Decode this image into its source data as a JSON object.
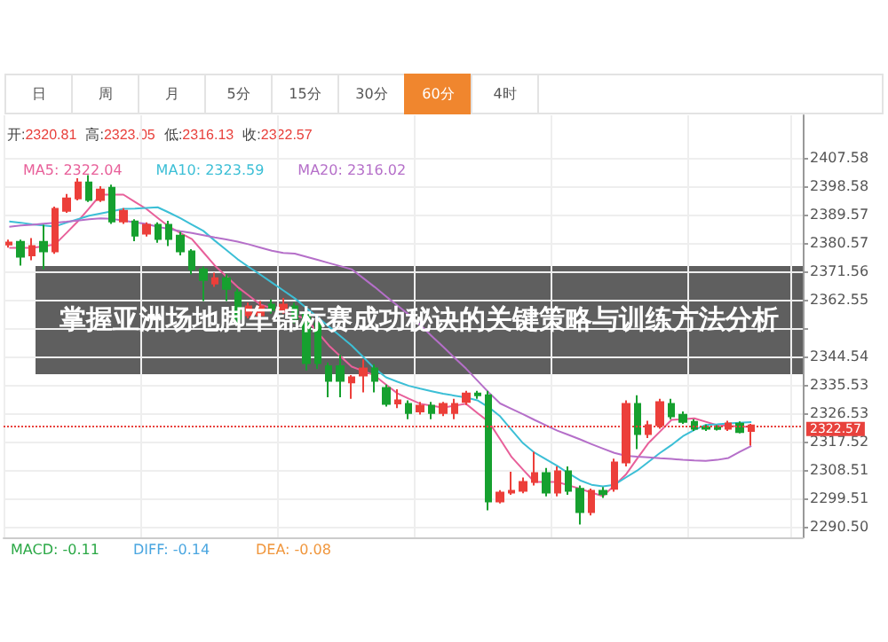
{
  "chart_data": {
    "type": "candlestick",
    "title": "掌握亚洲场地脚车锦标赛成功秘诀的关键策略与训练方法分析",
    "annotations": [
      "日",
      "周",
      "月",
      "5分",
      "15分",
      "30分",
      "60分",
      "4时",
      "开:2320.81",
      "高:2323.05",
      "低:2316.13",
      "收:2322.57",
      "MACD: -0.11",
      "DIFF: -0.14",
      "DEA: -0.08"
    ],
    "categories": [
      null,
      null,
      null,
      null,
      null,
      null,
      null,
      null,
      null,
      null,
      null,
      null,
      null,
      null,
      null,
      null,
      null,
      null,
      null,
      null,
      null,
      null,
      null,
      null,
      null,
      null,
      null,
      null,
      null,
      null,
      null,
      null,
      null,
      null,
      null,
      null,
      null,
      null,
      null,
      null,
      null,
      null,
      null,
      null,
      null,
      null,
      null,
      null,
      null,
      null,
      null,
      null,
      null,
      null,
      null,
      null,
      null,
      null,
      null,
      null,
      null,
      null,
      null,
      null,
      null,
      null,
      null,
      null,
      null,
      null
    ],
    "ohlc": [
      [
        2380.0,
        2381.5,
        2379.0,
        2380.6
      ],
      [
        2380.8,
        2381.5,
        2373.3,
        2376.1
      ],
      [
        2376.5,
        2382.0,
        2375.0,
        2379.5
      ],
      [
        2380.8,
        2386.2,
        2372.1,
        2377.8
      ],
      [
        2377.8,
        2392.0,
        2377.0,
        2391.3
      ],
      [
        2390.7,
        2396.0,
        2390.0,
        2394.6
      ],
      [
        2394.6,
        2401.0,
        2394.0,
        2399.7
      ],
      [
        2399.7,
        2402.0,
        2393.5,
        2394.1
      ],
      [
        2394.1,
        2398.5,
        2393.5,
        2397.4
      ],
      [
        2398.0,
        2399.0,
        2386.5,
        2387.3
      ],
      [
        2387.3,
        2391.5,
        2386.5,
        2390.7
      ],
      [
        2387.3,
        2388.0,
        2381.0,
        2382.8
      ],
      [
        2383.4,
        2387.0,
        2382.5,
        2386.2
      ],
      [
        2386.2,
        2387.0,
        2380.5,
        2381.7
      ],
      [
        2386.2,
        2387.5,
        2379.5,
        2381.7
      ],
      [
        2382.8,
        2384.0,
        2376.5,
        2377.8
      ],
      [
        2377.8,
        2378.5,
        2370.5,
        2372.1
      ],
      [
        2372.1,
        2373.0,
        2362.0,
        2368.7
      ],
      [
        2367.6,
        2371.0,
        2366.5,
        2369.3
      ],
      [
        2369.3,
        2370.5,
        2362.0,
        2365.9
      ],
      [
        2364.8,
        2366.0,
        2355.0,
        2356.4
      ],
      [
        2357.5,
        2361.5,
        2356.5,
        2360.3
      ],
      [
        2357.5,
        2362.0,
        2356.0,
        2360.3
      ],
      [
        2360.9,
        2362.5,
        2358.0,
        2359.2
      ],
      [
        2359.2,
        2363.0,
        2358.0,
        2360.9
      ],
      [
        2360.3,
        2361.5,
        2355.0,
        2356.4
      ],
      [
        2358.2,
        2359.0,
        2340.0,
        2342.3
      ],
      [
        2355.0,
        2356.0,
        2340.5,
        2342.3
      ],
      [
        2341.3,
        2342.5,
        2331.5,
        2336.7
      ],
      [
        2341.3,
        2345.0,
        2331.5,
        2336.7
      ],
      [
        2336.2,
        2338.5,
        2331.0,
        2337.8
      ],
      [
        2338.4,
        2343.5,
        2333.0,
        2340.6
      ],
      [
        2340.6,
        2342.0,
        2333.0,
        2336.7
      ],
      [
        2334.4,
        2335.5,
        2328.5,
        2329.4
      ],
      [
        2329.5,
        2334.0,
        2328.0,
        2330.5
      ],
      [
        2329.4,
        2330.5,
        2324.5,
        2326.5
      ],
      [
        2327.0,
        2330.0,
        2326.0,
        2328.8
      ],
      [
        2328.8,
        2330.0,
        2324.5,
        2326.5
      ],
      [
        2326.5,
        2330.0,
        2325.5,
        2329.4
      ],
      [
        2326.5,
        2331.0,
        2324.5,
        2329.4
      ],
      [
        2330.0,
        2333.5,
        2329.0,
        2332.7
      ],
      [
        2332.7,
        2333.5,
        2331.0,
        2332.1
      ],
      [
        2332.1,
        2333.5,
        2295.6,
        2298.4
      ],
      [
        2298.4,
        2302.0,
        2297.8,
        2301.2
      ],
      [
        2301.2,
        2307.8,
        2300.5,
        2301.8
      ],
      [
        2301.8,
        2306.0,
        2301.0,
        2304.6
      ],
      [
        2304.6,
        2314.2,
        2303.5,
        2307.4
      ],
      [
        2307.4,
        2309.0,
        2300.0,
        2301.2
      ],
      [
        2301.2,
        2309.5,
        2300.0,
        2308.0
      ],
      [
        2308.0,
        2309.5,
        2300.5,
        2301.8
      ],
      [
        2302.4,
        2303.5,
        2291.1,
        2295.0
      ],
      [
        2295.0,
        2302.5,
        2294.0,
        2301.8
      ],
      [
        2301.8,
        2303.0,
        2299.5,
        2300.7
      ],
      [
        2302.4,
        2312.0,
        2301.5,
        2310.8
      ],
      [
        2310.8,
        2330.5,
        2309.5,
        2329.4
      ],
      [
        2329.4,
        2332.1,
        2315.0,
        2319.8
      ],
      [
        2319.8,
        2324.0,
        2318.5,
        2322.6
      ],
      [
        2322.6,
        2331.0,
        2321.5,
        2329.9
      ],
      [
        2329.4,
        2331.0,
        2324.5,
        2325.4
      ],
      [
        2325.9,
        2327.0,
        2323.0,
        2323.7
      ],
      [
        2323.7,
        2324.5,
        2320.8,
        2321.5
      ],
      [
        2322.0,
        2322.8,
        2320.8,
        2321.5
      ],
      [
        2321.9,
        2322.6,
        2320.9,
        2321.4
      ],
      [
        2321.5,
        2324.0,
        2320.8,
        2323.2
      ],
      [
        2323.1,
        2323.8,
        2320.0,
        2320.4
      ],
      [
        2320.81,
        2323.05,
        2316.13,
        2322.57
      ],
      null,
      null,
      null,
      null
    ],
    "series": [
      {
        "name": "MA5: 2322.04",
        "type": "line",
        "color": "#e8609a",
        "values": [
          2378.9,
          2378.9,
          2378.9,
          2379.4,
          2380.0,
          2383.6,
          2387.3,
          2391.5,
          2395.8,
          2395.8,
          2395.8,
          2393.5,
          2391.3,
          2388.4,
          2385.6,
          2383.6,
          2381.7,
          2377.5,
          2373.3,
          2369.9,
          2366.5,
          2363.7,
          2360.9,
          2359.7,
          2358.6,
          2357.5,
          2356.4,
          2352.1,
          2347.9,
          2344.5,
          2341.2,
          2339.8,
          2338.4,
          2335.5,
          2332.7,
          2331.0,
          2329.4,
          2328.8,
          2328.2,
          2328.8,
          2329.4,
          2326.5,
          2323.7,
          2318.1,
          2312.5,
          2308.5,
          2304.6,
          2304.6,
          2304.6,
          2303.5,
          2302.4,
          2301.2,
          2300.1,
          2303.5,
          2306.9,
          2312.0,
          2317.0,
          2320.6,
          2324.3,
          2324.5,
          2324.8,
          2323.7,
          2322.6,
          2322.4,
          2322.2,
          2322.04,
          null,
          null,
          null,
          null
        ]
      },
      {
        "name": "MA10: 2323.59",
        "type": "line",
        "color": "#3cbfd6",
        "values": [
          2387.3,
          2386.9,
          2386.4,
          2386.0,
          2385.7,
          2386.9,
          2388.0,
          2389.1,
          2389.8,
          2390.5,
          2391.3,
          2391.4,
          2391.6,
          2391.8,
          2390.1,
          2388.3,
          2386.3,
          2384.3,
          2381.2,
          2378.3,
          2375.3,
          2372.8,
          2370.4,
          2367.9,
          2365.4,
          2362.9,
          2359.9,
          2356.9,
          2353.9,
          2350.9,
          2347.9,
          2344.3,
          2340.6,
          2337.8,
          2336.4,
          2335.1,
          2334.2,
          2333.4,
          2332.6,
          2332.0,
          2331.4,
          2330.5,
          2328.3,
          2325.4,
          2321.1,
          2316.9,
          2313.9,
          2311.8,
          2309.7,
          2307.3,
          2305.1,
          2303.7,
          2303.2,
          2303.7,
          2306.0,
          2308.2,
          2311.0,
          2313.8,
          2316.3,
          2319.1,
          2321.1,
          2322.7,
          2322.9,
          2323.2,
          2323.4,
          2323.59,
          null,
          null,
          null,
          null
        ]
      },
      {
        "name": "MA20: 2316.02",
        "type": "line",
        "color": "#b56fc9",
        "values": [
          2385.6,
          2386.0,
          2386.2,
          2386.6,
          2386.9,
          2387.2,
          2387.6,
          2388.0,
          2388.3,
          2388.1,
          2387.6,
          2387.0,
          2386.5,
          2385.6,
          2384.9,
          2384.2,
          2383.6,
          2382.9,
          2382.2,
          2381.6,
          2380.9,
          2380.0,
          2379.0,
          2378.0,
          2377.3,
          2377.1,
          2376.1,
          2375.1,
          2374.1,
          2373.1,
          2372.1,
          2369.3,
          2366.5,
          2363.5,
          2360.6,
          2357.7,
          2354.4,
          2350.9,
          2347.5,
          2344.0,
          2340.6,
          2336.8,
          2333.0,
          2329.5,
          2327.8,
          2326.1,
          2324.3,
          2322.6,
          2320.9,
          2319.5,
          2318.1,
          2316.6,
          2315.2,
          2313.8,
          2312.9,
          2312.6,
          2312.4,
          2312.1,
          2311.9,
          2311.6,
          2311.4,
          2311.3,
          2311.6,
          2312.2,
          2314.2,
          2316.02,
          null,
          null,
          null,
          null
        ]
      }
    ],
    "ylim": [
      2287,
      2421
    ],
    "yticks": [
      2407.58,
      2398.58,
      2389.57,
      2380.57,
      2371.56,
      2362.55,
      {
        "value": 2353.55,
        "label": null
      },
      2344.54,
      2335.53,
      2326.53,
      2317.52,
      2308.51,
      2299.51,
      {
        "value": 2290.5,
        "label": "2290.50"
      }
    ],
    "ref_lines": [
      {
        "axis": "y",
        "value": 2322.57,
        "label": "2322.57",
        "color": "#e8413c",
        "line_style": "dotted"
      }
    ],
    "grid": true,
    "legend": "top left",
    "tick_labels": "y",
    "marker": "none",
    "line_style": "solid"
  }
}
